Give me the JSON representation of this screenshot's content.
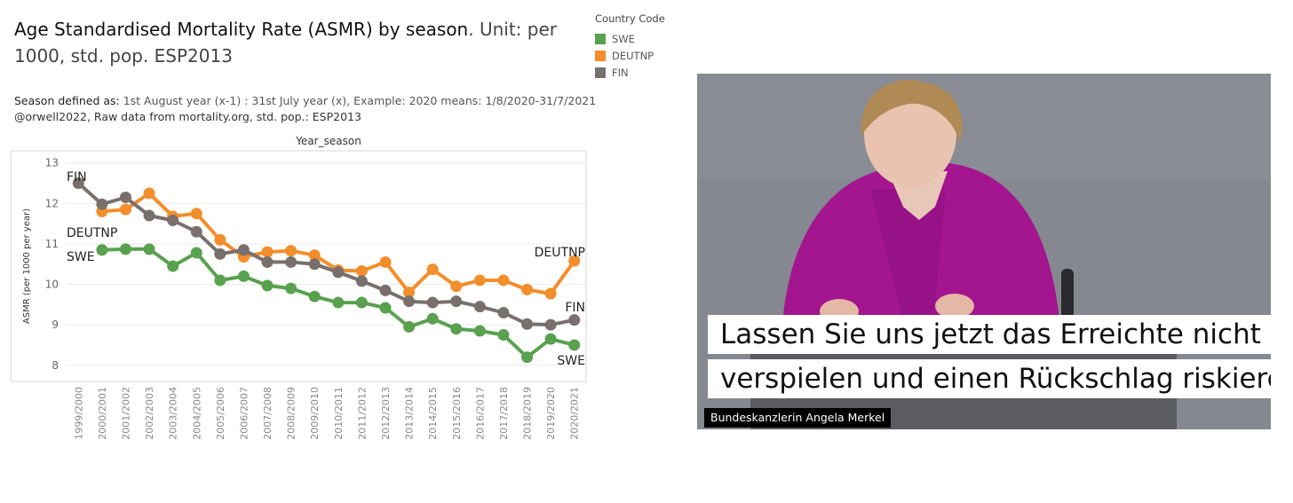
{
  "chart_data": {
    "type": "line",
    "title": "Age Standardised Mortality Rate (ASMR) by season",
    "title_unit": ". Unit: per 1000, std. pop. ESP2013",
    "subtitle_prefix": "Season defined as: ",
    "subtitle_rest": "1st August year (x-1) : 31st July  year (x), Example: 2020 means: 1/8/2020-31/7/2021",
    "subtitle_line2": "@orwell2022,  Raw data from mortality.org, std. pop.: ESP2013",
    "xlabel": "Year_season",
    "ylabel": "ASMR (per 1000 per year)",
    "ylim": [
      7.6,
      13.3
    ],
    "yticks": [
      8,
      9,
      10,
      11,
      12,
      13
    ],
    "grid": true,
    "legend_title": "Country Code",
    "legend_position": "top-right",
    "categories": [
      "1999/2000",
      "2000/2001",
      "2001/2002",
      "2002/2003",
      "2003/2004",
      "2004/2005",
      "2005/2006",
      "2006/2007",
      "2007/2008",
      "2008/2009",
      "2009/2010",
      "2010/2011",
      "2011/2012",
      "2012/2013",
      "2013/2014",
      "2014/2015",
      "2015/2016",
      "2016/2017",
      "2017/2018",
      "2018/2019",
      "2019/2020",
      "2020/2021"
    ],
    "series": [
      {
        "name": "SWE",
        "color": "#59a14f",
        "label_start": "SWE",
        "label_end": "SWE",
        "values": [
          null,
          10.85,
          10.87,
          10.87,
          10.45,
          10.78,
          10.1,
          10.2,
          9.97,
          9.9,
          9.7,
          9.55,
          9.55,
          9.42,
          8.95,
          9.15,
          8.9,
          8.85,
          8.75,
          8.2,
          8.65,
          8.5
        ]
      },
      {
        "name": "DEUTNP",
        "color": "#f28e2b",
        "label_start": "DEUTNP",
        "label_end": "DEUTNP",
        "values": [
          null,
          11.8,
          11.85,
          12.25,
          11.68,
          11.75,
          11.1,
          10.68,
          10.8,
          10.83,
          10.72,
          10.35,
          10.33,
          10.55,
          9.8,
          10.37,
          9.95,
          10.1,
          10.1,
          9.87,
          9.77,
          10.58
        ]
      },
      {
        "name": "FIN",
        "color": "#79706e",
        "label_start": "FIN",
        "label_end": "FIN",
        "values": [
          12.5,
          11.98,
          12.15,
          11.7,
          11.58,
          11.3,
          10.75,
          10.85,
          10.55,
          10.55,
          10.5,
          10.3,
          10.08,
          9.85,
          9.58,
          9.55,
          9.58,
          9.45,
          9.3,
          9.02,
          9.0,
          9.12
        ]
      }
    ]
  },
  "photo": {
    "subtitle_line1": "Lassen Sie uns jetzt das Erreichte nicht",
    "subtitle_line2": "verspielen und einen Rückschlag riskieren.",
    "caption": "Bundeskanzlerin Angela Merkel"
  }
}
